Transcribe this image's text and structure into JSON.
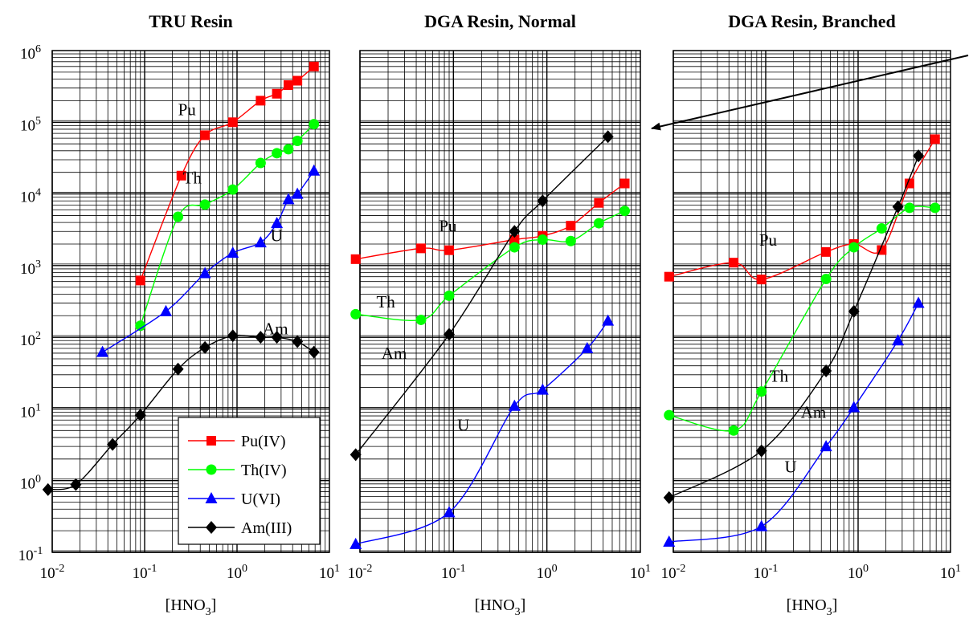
{
  "figure": {
    "x_axis_label": "[HNO",
    "x_axis_label_sub": "3",
    "x_axis_label_close": "]",
    "legend": [
      {
        "label": "Pu(IV)",
        "color": "#ff0000",
        "marker": "square"
      },
      {
        "label": "Th(IV)",
        "color": "#00ff00",
        "marker": "circle"
      },
      {
        "label": "U(VI)",
        "color": "#0000ff",
        "marker": "triangle"
      },
      {
        "label": "Am(III)",
        "color": "#000000",
        "marker": "diamond"
      }
    ]
  },
  "chart_data": [
    {
      "type": "line",
      "title": "TRU Resin",
      "xlabel": "[HNO3]",
      "ylabel": "",
      "xscale": "log",
      "yscale": "log",
      "xlim": [
        0.01,
        10
      ],
      "ylim": [
        0.1,
        1000000
      ],
      "x_tick_labels": [
        {
          "base": "10",
          "exp": "-2"
        },
        {
          "base": "10",
          "exp": "-1"
        },
        {
          "base": "10",
          "exp": "0"
        },
        {
          "base": "10",
          "exp": "1"
        }
      ],
      "y_tick_labels": [
        {
          "base": "10",
          "exp": "-1"
        },
        {
          "base": "10",
          "exp": "0"
        },
        {
          "base": "10",
          "exp": "1"
        },
        {
          "base": "10",
          "exp": "2"
        },
        {
          "base": "10",
          "exp": "3"
        },
        {
          "base": "10",
          "exp": "4"
        },
        {
          "base": "10",
          "exp": "5"
        },
        {
          "base": "10",
          "exp": "6"
        }
      ],
      "grid": true,
      "legend_position": "bottom-right",
      "curve_labels": [
        {
          "text": "Pu",
          "x": 0.23,
          "y": 125000
        },
        {
          "text": "Th",
          "x": 0.26,
          "y": 14000
        },
        {
          "text": "U",
          "x": 2.3,
          "y": 2200
        },
        {
          "text": "Am",
          "x": 1.9,
          "y": 110
        }
      ],
      "series": [
        {
          "name": "Pu(IV)",
          "color": "#ff0000",
          "marker": "square",
          "x": [
            0.09,
            0.25,
            0.45,
            0.9,
            1.8,
            2.7,
            3.6,
            4.5,
            6.8
          ],
          "y": [
            620,
            18000,
            66000,
            100000,
            200000,
            250000,
            330000,
            380000,
            600000
          ]
        },
        {
          "name": "Th(IV)",
          "color": "#00ff00",
          "marker": "circle",
          "x": [
            0.09,
            0.23,
            0.45,
            0.9,
            1.8,
            2.7,
            3.6,
            4.5,
            6.8
          ],
          "y": [
            145,
            4800,
            7100,
            11500,
            27000,
            37000,
            42000,
            55000,
            94000
          ]
        },
        {
          "name": "U(VI)",
          "color": "#0000ff",
          "marker": "triangle",
          "x": [
            0.035,
            0.17,
            0.45,
            0.9,
            1.8,
            2.7,
            3.6,
            4.5,
            6.8
          ],
          "y": [
            62,
            230,
            780,
            1500,
            2100,
            3900,
            8400,
            10000,
            21000
          ]
        },
        {
          "name": "Am(III)",
          "color": "#000000",
          "marker": "diamond",
          "x": [
            0.009,
            0.018,
            0.045,
            0.09,
            0.23,
            0.45,
            0.9,
            1.8,
            2.7,
            4.5,
            6.8
          ],
          "y": [
            0.75,
            0.88,
            3.2,
            8.2,
            36,
            72,
            105,
            100,
            100,
            87,
            62
          ]
        }
      ]
    },
    {
      "type": "line",
      "title": "DGA Resin, Normal",
      "xlabel": "[HNO3]",
      "ylabel": "",
      "xscale": "log",
      "yscale": "log",
      "xlim": [
        0.01,
        10
      ],
      "ylim": [
        0.1,
        1000000
      ],
      "x_tick_labels": [
        {
          "base": "10",
          "exp": "-2"
        },
        {
          "base": "10",
          "exp": "-1"
        },
        {
          "base": "10",
          "exp": "0"
        },
        {
          "base": "10",
          "exp": "1"
        }
      ],
      "grid": true,
      "curve_labels": [
        {
          "text": "Pu",
          "x": 0.07,
          "y": 3000
        },
        {
          "text": "Th",
          "x": 0.015,
          "y": 260
        },
        {
          "text": "Am",
          "x": 0.017,
          "y": 50
        },
        {
          "text": "U",
          "x": 0.11,
          "y": 5
        },
        {
          "text": "",
          "x": 0,
          "y": 0
        }
      ],
      "series": [
        {
          "name": "Pu(IV)",
          "color": "#ff0000",
          "marker": "square",
          "x": [
            0.009,
            0.045,
            0.09,
            0.45,
            0.9,
            1.8,
            3.6,
            6.8
          ],
          "y": [
            1230,
            1740,
            1640,
            2300,
            2600,
            3600,
            7500,
            14000
          ]
        },
        {
          "name": "Th(IV)",
          "color": "#00ff00",
          "marker": "circle",
          "x": [
            0.009,
            0.045,
            0.09,
            0.45,
            0.9,
            1.8,
            3.6,
            6.8
          ],
          "y": [
            210,
            175,
            380,
            1800,
            2300,
            2200,
            3900,
            5800
          ]
        },
        {
          "name": "U(VI)",
          "color": "#0000ff",
          "marker": "triangle",
          "x": [
            0.009,
            0.09,
            0.45,
            0.9,
            2.7,
            4.5
          ],
          "y": [
            0.13,
            0.36,
            11,
            18.5,
            70,
            170
          ]
        },
        {
          "name": "Am(III)",
          "color": "#000000",
          "marker": "diamond",
          "x": [
            0.009,
            0.09,
            0.45,
            0.9,
            4.5
          ],
          "y": [
            2.3,
            110,
            3000,
            8000,
            63000
          ]
        }
      ]
    },
    {
      "type": "line",
      "title": "DGA Resin, Branched",
      "xlabel": "[HNO3]",
      "ylabel": "",
      "xscale": "log",
      "yscale": "log",
      "xlim": [
        0.01,
        10
      ],
      "ylim": [
        0.1,
        1000000
      ],
      "x_tick_labels": [
        {
          "base": "10",
          "exp": "-2"
        },
        {
          "base": "10",
          "exp": "-1"
        },
        {
          "base": "10",
          "exp": "0"
        },
        {
          "base": "10",
          "exp": "1"
        }
      ],
      "grid": true,
      "curve_labels": [
        {
          "text": "Pu",
          "x": 0.085,
          "y": 1900
        },
        {
          "text": "Th",
          "x": 0.11,
          "y": 24
        },
        {
          "text": "Am",
          "x": 0.24,
          "y": 7.5
        },
        {
          "text": "U",
          "x": 0.16,
          "y": 1.3
        }
      ],
      "series": [
        {
          "name": "Pu(IV)",
          "color": "#ff0000",
          "marker": "square",
          "x": [
            0.009,
            0.045,
            0.09,
            0.45,
            0.9,
            1.8,
            3.6,
            6.8
          ],
          "y": [
            700,
            1100,
            640,
            1550,
            2000,
            1650,
            14000,
            58000
          ]
        },
        {
          "name": "Th(IV)",
          "color": "#00ff00",
          "marker": "circle",
          "x": [
            0.009,
            0.045,
            0.09,
            0.45,
            0.9,
            1.8,
            3.6,
            6.8
          ],
          "y": [
            8.2,
            5,
            17.5,
            650,
            1800,
            3300,
            6400,
            6400
          ]
        },
        {
          "name": "U(VI)",
          "color": "#0000ff",
          "marker": "triangle",
          "x": [
            0.009,
            0.09,
            0.45,
            0.9,
            2.7,
            4.5
          ],
          "y": [
            0.14,
            0.23,
            3,
            10.5,
            90,
            300
          ]
        },
        {
          "name": "Am(III)",
          "color": "#000000",
          "marker": "diamond",
          "x": [
            0.009,
            0.09,
            0.45,
            0.9,
            2.7,
            4.5
          ],
          "y": [
            0.58,
            2.6,
            34,
            230,
            6600,
            34000
          ]
        }
      ]
    }
  ]
}
